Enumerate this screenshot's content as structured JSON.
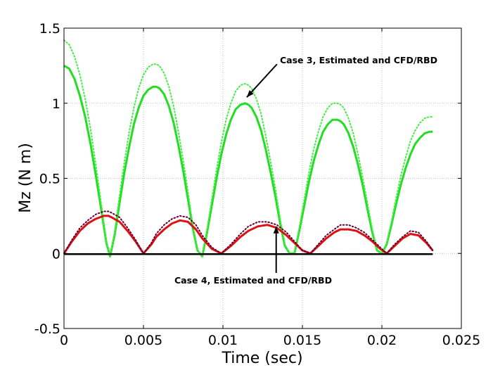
{
  "chart_data": {
    "type": "line",
    "title": "",
    "xlabel": "Time (sec)",
    "ylabel": "Mz (N m)",
    "xlim": [
      0,
      0.025
    ],
    "ylim": [
      -0.5,
      1.5
    ],
    "xticks": [
      0,
      0.005,
      0.01,
      0.015,
      0.02,
      0.025
    ],
    "xtick_labels": [
      "0",
      "0.005",
      "0.01",
      "0.015",
      "0.02",
      "0.025"
    ],
    "yticks": [
      -0.5,
      0,
      0.5,
      1,
      1.5
    ],
    "ytick_labels": [
      "-0.5",
      "0",
      "0.5",
      "1",
      "1.5"
    ],
    "grid": true,
    "legend": "none",
    "series": [
      {
        "style": "solid",
        "color": "#22dd22",
        "x": [
          0,
          0.00033,
          0.00067,
          0.001,
          0.00133,
          0.00167,
          0.002,
          0.00233,
          0.00267,
          0.0029,
          0.0032,
          0.0035,
          0.0038,
          0.0041,
          0.0044,
          0.0047,
          0.005,
          0.0053,
          0.0056,
          0.0058,
          0.006,
          0.0063,
          0.0066,
          0.0069,
          0.0072,
          0.0075,
          0.0078,
          0.0081,
          0.0084,
          0.0087,
          0.009,
          0.0093,
          0.0096,
          0.0099,
          0.0102,
          0.0105,
          0.0108,
          0.0111,
          0.0114,
          0.0116,
          0.0118,
          0.0121,
          0.0124,
          0.0127,
          0.013,
          0.0133,
          0.0136,
          0.0139,
          0.0142,
          0.0145,
          0.0148,
          0.0151,
          0.0154,
          0.0157,
          0.016,
          0.0163,
          0.0166,
          0.0169,
          0.0172,
          0.0174,
          0.0176,
          0.0179,
          0.0182,
          0.0185,
          0.0188,
          0.0191,
          0.0194,
          0.0197,
          0.02,
          0.0203,
          0.0206,
          0.0209,
          0.0212,
          0.0215,
          0.0218,
          0.0221,
          0.0224,
          0.0227,
          0.023,
          0.0232
        ],
        "y": [
          1.25,
          1.23,
          1.16,
          1.05,
          0.91,
          0.73,
          0.52,
          0.3,
          0.07,
          -0.02,
          0.13,
          0.34,
          0.54,
          0.71,
          0.86,
          0.97,
          1.05,
          1.09,
          1.11,
          1.11,
          1.1,
          1.06,
          0.98,
          0.87,
          0.72,
          0.55,
          0.36,
          0.17,
          0.02,
          -0.02,
          0.14,
          0.32,
          0.5,
          0.66,
          0.79,
          0.89,
          0.96,
          0.99,
          1.0,
          0.99,
          0.97,
          0.91,
          0.82,
          0.69,
          0.54,
          0.38,
          0.2,
          0.05,
          0.0,
          0.0,
          0.15,
          0.31,
          0.47,
          0.61,
          0.72,
          0.81,
          0.86,
          0.89,
          0.89,
          0.88,
          0.86,
          0.8,
          0.71,
          0.59,
          0.45,
          0.29,
          0.14,
          0.02,
          0.0,
          0.06,
          0.19,
          0.33,
          0.46,
          0.57,
          0.66,
          0.73,
          0.77,
          0.8,
          0.81,
          0.81
        ]
      },
      {
        "style": "dotted",
        "color": "#44ee44",
        "x": [
          0,
          0.00033,
          0.00067,
          0.001,
          0.00133,
          0.00167,
          0.002,
          0.00233,
          0.00267,
          0.0029,
          0.0032,
          0.0035,
          0.0038,
          0.0041,
          0.0044,
          0.0047,
          0.005,
          0.0053,
          0.0056,
          0.0058,
          0.006,
          0.0063,
          0.0066,
          0.0069,
          0.0072,
          0.0075,
          0.0078,
          0.0081,
          0.0084,
          0.0087,
          0.009,
          0.0093,
          0.0096,
          0.0099,
          0.0102,
          0.0105,
          0.0108,
          0.0111,
          0.0114,
          0.0116,
          0.0118,
          0.0121,
          0.0124,
          0.0127,
          0.013,
          0.0133,
          0.0136,
          0.0139,
          0.0142,
          0.0145,
          0.0148,
          0.0151,
          0.0154,
          0.0157,
          0.016,
          0.0163,
          0.0166,
          0.0169,
          0.0172,
          0.0174,
          0.0176,
          0.0179,
          0.0182,
          0.0185,
          0.0188,
          0.0191,
          0.0194,
          0.0197,
          0.02,
          0.0203,
          0.0206,
          0.0209,
          0.0212,
          0.0215,
          0.0218,
          0.0221,
          0.0224,
          0.0227,
          0.023,
          0.0232
        ],
        "y": [
          1.42,
          1.39,
          1.31,
          1.19,
          1.03,
          0.83,
          0.59,
          0.34,
          0.08,
          -0.02,
          0.15,
          0.39,
          0.61,
          0.81,
          0.97,
          1.1,
          1.19,
          1.24,
          1.26,
          1.26,
          1.25,
          1.2,
          1.11,
          0.98,
          0.81,
          0.62,
          0.41,
          0.19,
          0.02,
          -0.02,
          0.16,
          0.36,
          0.56,
          0.74,
          0.89,
          1.0,
          1.08,
          1.12,
          1.13,
          1.12,
          1.1,
          1.03,
          0.93,
          0.78,
          0.61,
          0.43,
          0.23,
          0.06,
          0.0,
          0.0,
          0.17,
          0.35,
          0.53,
          0.69,
          0.81,
          0.91,
          0.97,
          1.0,
          1.0,
          0.99,
          0.97,
          0.9,
          0.8,
          0.66,
          0.5,
          0.33,
          0.16,
          0.02,
          0.0,
          0.07,
          0.21,
          0.37,
          0.52,
          0.64,
          0.75,
          0.82,
          0.87,
          0.9,
          0.91,
          0.91
        ]
      },
      {
        "style": "solid",
        "color": "#dd1111",
        "x": [
          0,
          0.0005,
          0.001,
          0.0015,
          0.002,
          0.0025,
          0.0028,
          0.003,
          0.0035,
          0.004,
          0.0045,
          0.005,
          0.0055,
          0.0058,
          0.0063,
          0.0068,
          0.0073,
          0.0078,
          0.0083,
          0.0087,
          0.0093,
          0.0099,
          0.0105,
          0.0111,
          0.0116,
          0.0122,
          0.0128,
          0.0134,
          0.014,
          0.0145,
          0.015,
          0.0155,
          0.016,
          0.0165,
          0.017,
          0.0174,
          0.0179,
          0.0184,
          0.0189,
          0.0194,
          0.0199,
          0.0203,
          0.0208,
          0.0213,
          0.0218,
          0.0223,
          0.0228,
          0.0232
        ],
        "y": [
          0.0,
          0.08,
          0.15,
          0.2,
          0.23,
          0.25,
          0.25,
          0.24,
          0.21,
          0.15,
          0.08,
          0.0,
          0.06,
          0.11,
          0.16,
          0.2,
          0.22,
          0.21,
          0.16,
          0.1,
          0.03,
          0.0,
          0.05,
          0.11,
          0.15,
          0.18,
          0.19,
          0.17,
          0.12,
          0.07,
          0.02,
          0.0,
          0.05,
          0.1,
          0.14,
          0.16,
          0.16,
          0.15,
          0.12,
          0.08,
          0.03,
          0.0,
          0.05,
          0.1,
          0.13,
          0.12,
          0.07,
          0.02
        ]
      },
      {
        "style": "dotted",
        "color": "#660033",
        "x": [
          0,
          0.0005,
          0.001,
          0.0015,
          0.002,
          0.0025,
          0.0028,
          0.003,
          0.0035,
          0.004,
          0.0045,
          0.005,
          0.0055,
          0.0058,
          0.0063,
          0.0068,
          0.0073,
          0.0078,
          0.0083,
          0.0087,
          0.0093,
          0.0099,
          0.0105,
          0.0111,
          0.0116,
          0.0122,
          0.0128,
          0.0134,
          0.014,
          0.0145,
          0.015,
          0.0155,
          0.016,
          0.0165,
          0.017,
          0.0174,
          0.0179,
          0.0184,
          0.0189,
          0.0194,
          0.0199,
          0.0203,
          0.0208,
          0.0213,
          0.0218,
          0.0223,
          0.0228,
          0.0232
        ],
        "y": [
          0.0,
          0.09,
          0.17,
          0.22,
          0.26,
          0.28,
          0.28,
          0.27,
          0.24,
          0.17,
          0.09,
          0.0,
          0.07,
          0.13,
          0.19,
          0.23,
          0.25,
          0.24,
          0.19,
          0.12,
          0.04,
          0.0,
          0.06,
          0.13,
          0.18,
          0.21,
          0.21,
          0.19,
          0.14,
          0.08,
          0.02,
          0.0,
          0.06,
          0.12,
          0.16,
          0.19,
          0.19,
          0.17,
          0.14,
          0.09,
          0.04,
          0.0,
          0.06,
          0.11,
          0.15,
          0.14,
          0.08,
          0.02
        ]
      },
      {
        "style": "solid",
        "color": "#000000",
        "x": [
          0,
          0.0232
        ],
        "y": [
          -0.005,
          -0.005
        ]
      }
    ],
    "annotations": [
      {
        "text": "Case 3, Estimated and CFD/RBD",
        "arrow_from": [
          0.0134,
          1.26
        ],
        "arrow_to": [
          0.0115,
          1.04
        ]
      },
      {
        "text": "Case 4, Estimated and CFD/RBD",
        "arrow_from": [
          0.01335,
          -0.13
        ],
        "arrow_to": [
          0.01335,
          0.18
        ]
      }
    ]
  }
}
